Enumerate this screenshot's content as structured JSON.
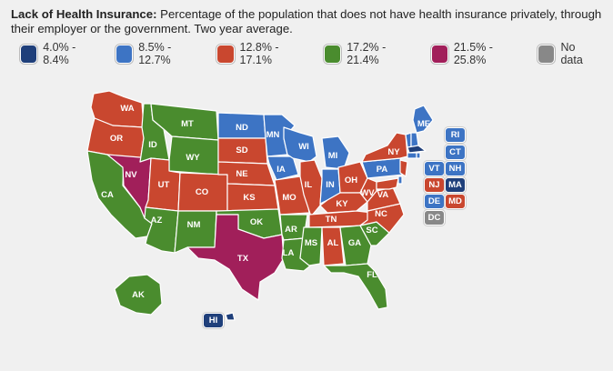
{
  "header": {
    "title": "Lack of Health Insurance:",
    "description": "Percentage of the population that does not have health insurance privately, through their employer or the government. Two year average."
  },
  "legend": [
    {
      "label": "4.0% - 8.4%",
      "color": "#1f3f7a"
    },
    {
      "label": "8.5% - 12.7%",
      "color": "#3d74c4"
    },
    {
      "label": "12.8% - 17.1%",
      "color": "#c9472f"
    },
    {
      "label": "17.2% - 21.4%",
      "color": "#4a8c2e"
    },
    {
      "label": "21.5% - 25.8%",
      "color": "#a11f5a"
    },
    {
      "label": "No data",
      "color": "#888888"
    }
  ],
  "states": {
    "WA": "12.8% - 17.1%",
    "OR": "12.8% - 17.1%",
    "CA": "17.2% - 21.4%",
    "NV": "21.5% - 25.8%",
    "ID": "17.2% - 21.4%",
    "MT": "17.2% - 21.4%",
    "WY": "17.2% - 21.4%",
    "UT": "12.8% - 17.1%",
    "AZ": "17.2% - 21.4%",
    "CO": "12.8% - 17.1%",
    "NM": "17.2% - 21.4%",
    "ND": "8.5% - 12.7%",
    "SD": "12.8% - 17.1%",
    "NE": "12.8% - 17.1%",
    "KS": "12.8% - 17.1%",
    "OK": "17.2% - 21.4%",
    "TX": "21.5% - 25.8%",
    "MN": "8.5% - 12.7%",
    "IA": "8.5% - 12.7%",
    "MO": "12.8% - 17.1%",
    "AR": "17.2% - 21.4%",
    "LA": "17.2% - 21.4%",
    "WI": "8.5% - 12.7%",
    "IL": "12.8% - 17.1%",
    "MI": "8.5% - 12.7%",
    "IN": "8.5% - 12.7%",
    "OH": "12.8% - 17.1%",
    "KY": "12.8% - 17.1%",
    "TN": "12.8% - 17.1%",
    "MS": "17.2% - 21.4%",
    "AL": "12.8% - 17.1%",
    "GA": "17.2% - 21.4%",
    "FL": "17.2% - 21.4%",
    "SC": "17.2% - 21.4%",
    "NC": "12.8% - 17.1%",
    "VA": "12.8% - 17.1%",
    "WV": "12.8% - 17.1%",
    "PA": "8.5% - 12.7%",
    "NY": "12.8% - 17.1%",
    "ME": "8.5% - 12.7%",
    "AK": "17.2% - 21.4%",
    "HI": "4.0% - 8.4%",
    "RI": "8.5% - 12.7%",
    "CT": "8.5% - 12.7%",
    "VT": "8.5% - 12.7%",
    "NH": "8.5% - 12.7%",
    "NJ": "12.8% - 17.1%",
    "MA": "4.0% - 8.4%",
    "DE": "8.5% - 12.7%",
    "MD": "12.8% - 17.1%",
    "DC": "No data"
  }
}
